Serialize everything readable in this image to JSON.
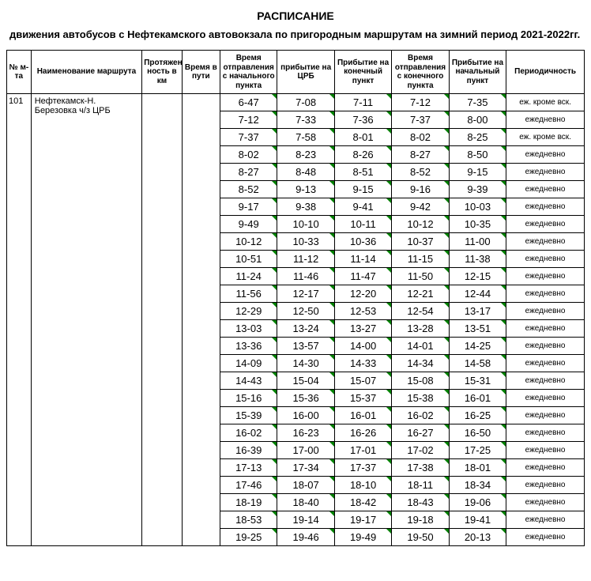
{
  "title": "РАСПИСАНИЕ",
  "subtitle": "движения автобусов с Нефтекамского автовокзала по пригородным  маршрутам на зимний период 2021-2022гг.",
  "columns": {
    "no": "№ м-та",
    "name": "Наименование маршрута",
    "dist": "Протяжен ность в км",
    "dur": "Время в пути",
    "t1": "Время отправления с начального пункта",
    "t2": "прибытие на ЦРБ",
    "t3": "Прибытие на конечный пункт",
    "t4": "Время отправления с конечного пункта",
    "t5": "Прибытие на начальный пункт",
    "freq": "Периодичность"
  },
  "route": {
    "no": "101",
    "name": "Нефтекамск-Н. Березовка ч/з ЦРБ",
    "dist": "",
    "dur": ""
  },
  "rows": [
    {
      "t1": "6-47",
      "t2": "7-08",
      "t3": "7-11",
      "t4": "7-12",
      "t5": "7-35",
      "freq": "еж. кроме вск."
    },
    {
      "t1": "7-12",
      "t2": "7-33",
      "t3": "7-36",
      "t4": "7-37",
      "t5": "8-00",
      "freq": "ежедневно"
    },
    {
      "t1": "7-37",
      "t2": "7-58",
      "t3": "8-01",
      "t4": "8-02",
      "t5": "8-25",
      "freq": "еж. кроме вск."
    },
    {
      "t1": "8-02",
      "t2": "8-23",
      "t3": "8-26",
      "t4": "8-27",
      "t5": "8-50",
      "freq": "ежедневно"
    },
    {
      "t1": "8-27",
      "t2": "8-48",
      "t3": "8-51",
      "t4": "8-52",
      "t5": "9-15",
      "freq": "ежедневно"
    },
    {
      "t1": "8-52",
      "t2": "9-13",
      "t3": "9-15",
      "t4": "9-16",
      "t5": "9-39",
      "freq": "ежедневно"
    },
    {
      "t1": "9-17",
      "t2": "9-38",
      "t3": "9-41",
      "t4": "9-42",
      "t5": "10-03",
      "freq": "ежедневно"
    },
    {
      "t1": "9-49",
      "t2": "10-10",
      "t3": "10-11",
      "t4": "10-12",
      "t5": "10-35",
      "freq": "ежедневно"
    },
    {
      "t1": "10-12",
      "t2": "10-33",
      "t3": "10-36",
      "t4": "10-37",
      "t5": "11-00",
      "freq": "ежедневно"
    },
    {
      "t1": "10-51",
      "t2": "11-12",
      "t3": "11-14",
      "t4": "11-15",
      "t5": "11-38",
      "freq": "ежедневно"
    },
    {
      "t1": "11-24",
      "t2": "11-46",
      "t3": "11-47",
      "t4": "11-50",
      "t5": "12-15",
      "freq": "ежедневно"
    },
    {
      "t1": "11-56",
      "t2": "12-17",
      "t3": "12-20",
      "t4": "12-21",
      "t5": "12-44",
      "freq": "ежедневно"
    },
    {
      "t1": "12-29",
      "t2": "12-50",
      "t3": "12-53",
      "t4": "12-54",
      "t5": "13-17",
      "freq": "ежедневно"
    },
    {
      "t1": "13-03",
      "t2": "13-24",
      "t3": "13-27",
      "t4": "13-28",
      "t5": "13-51",
      "freq": "ежедневно"
    },
    {
      "t1": "13-36",
      "t2": "13-57",
      "t3": "14-00",
      "t4": "14-01",
      "t5": "14-25",
      "freq": "ежедневно"
    },
    {
      "t1": "14-09",
      "t2": "14-30",
      "t3": "14-33",
      "t4": "14-34",
      "t5": "14-58",
      "freq": "ежедневно"
    },
    {
      "t1": "14-43",
      "t2": "15-04",
      "t3": "15-07",
      "t4": "15-08",
      "t5": "15-31",
      "freq": "ежедневно"
    },
    {
      "t1": "15-16",
      "t2": "15-36",
      "t3": "15-37",
      "t4": "15-38",
      "t5": "16-01",
      "freq": "ежедневно"
    },
    {
      "t1": "15-39",
      "t2": "16-00",
      "t3": "16-01",
      "t4": "16-02",
      "t5": "16-25",
      "freq": "ежедневно"
    },
    {
      "t1": "16-02",
      "t2": "16-23",
      "t3": "16-26",
      "t4": "16-27",
      "t5": "16-50",
      "freq": "ежедневно"
    },
    {
      "t1": "16-39",
      "t2": "17-00",
      "t3": "17-01",
      "t4": "17-02",
      "t5": "17-25",
      "freq": "ежедневно"
    },
    {
      "t1": "17-13",
      "t2": "17-34",
      "t3": "17-37",
      "t4": "17-38",
      "t5": "18-01",
      "freq": "ежедневно"
    },
    {
      "t1": "17-46",
      "t2": "18-07",
      "t3": "18-10",
      "t4": "18-11",
      "t5": "18-34",
      "freq": "ежедневно"
    },
    {
      "t1": "18-19",
      "t2": "18-40",
      "t3": "18-42",
      "t4": "18-43",
      "t5": "19-06",
      "freq": "ежедневно"
    },
    {
      "t1": "18-53",
      "t2": "19-14",
      "t3": "19-17",
      "t4": "19-18",
      "t5": "19-41",
      "freq": "ежедневно"
    },
    {
      "t1": "19-25",
      "t2": "19-46",
      "t3": "19-49",
      "t4": "19-50",
      "t5": "20-13",
      "freq": "ежедневно"
    }
  ]
}
